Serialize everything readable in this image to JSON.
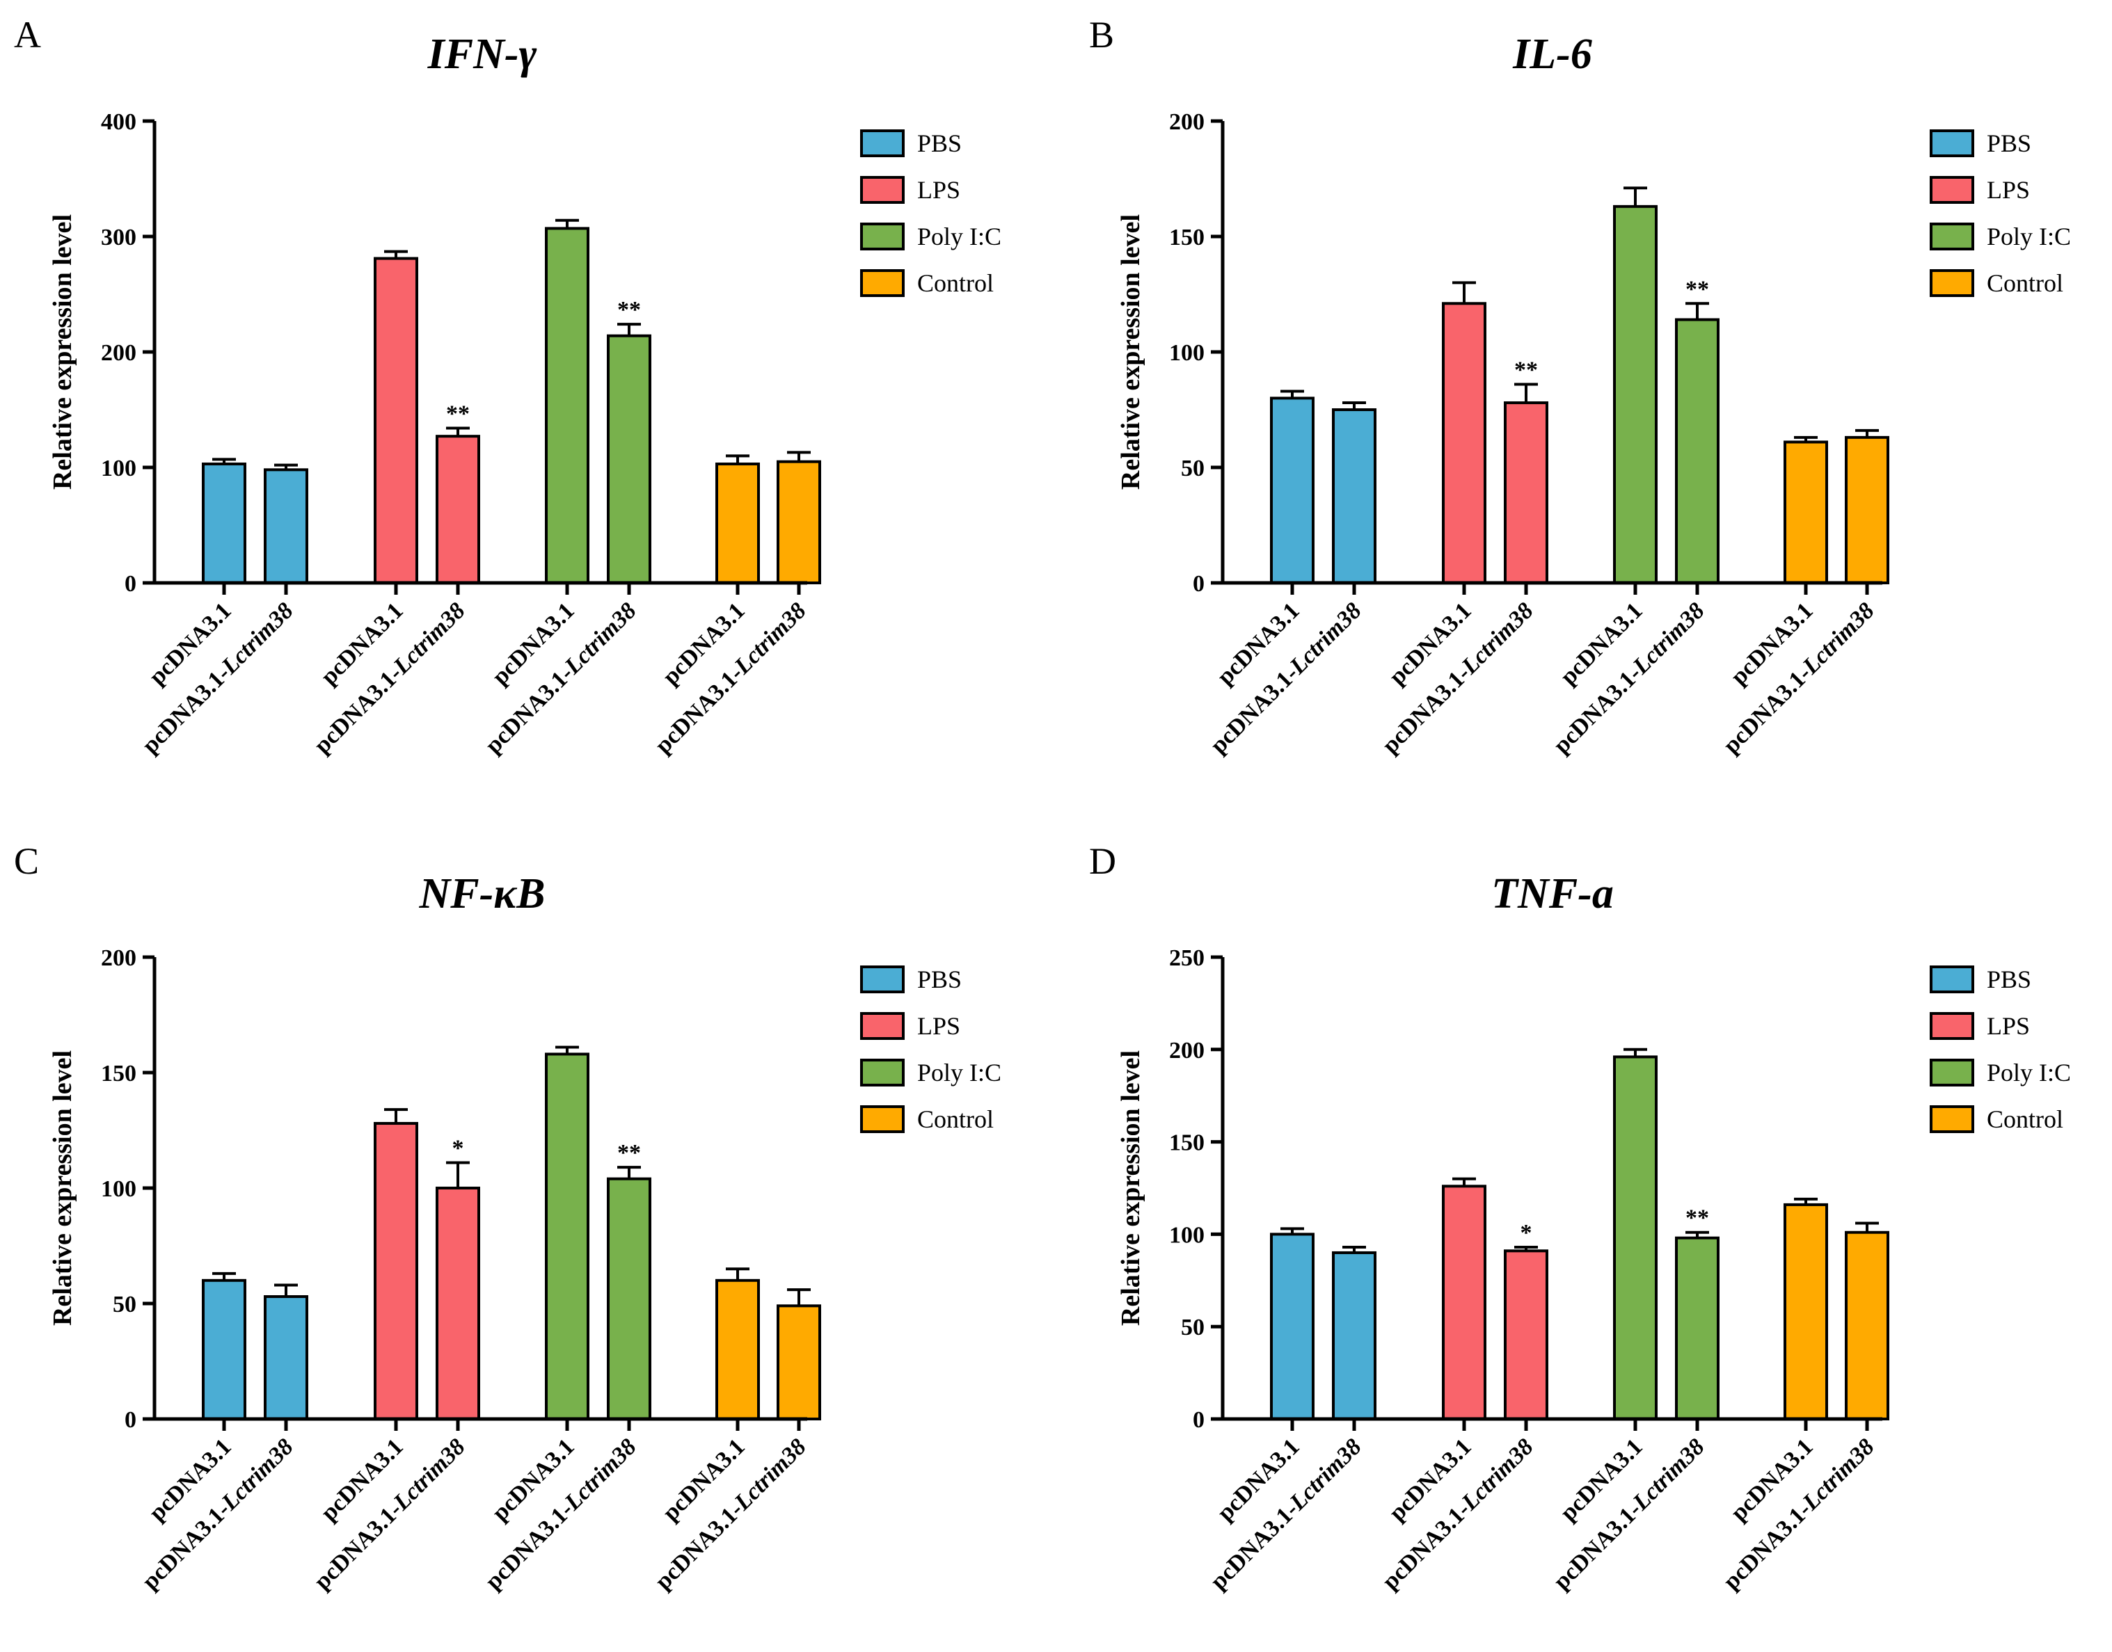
{
  "colors": {
    "PBS": "#4badd4",
    "LPS": "#f9646b",
    "Poly I:C": "#78b14c",
    "Control": "#ffaa00"
  },
  "chart_data": [
    {
      "panel": "A",
      "type": "bar",
      "title": "IFN-γ",
      "ylabel": "Relative expression level",
      "xlabel": "",
      "ylim": [
        0,
        400
      ],
      "yticks": [
        0,
        100,
        200,
        300,
        400
      ],
      "groups": [
        "PBS",
        "LPS",
        "Poly I:C",
        "Control"
      ],
      "categories": [
        "pcDNA3.1",
        "pcDNA3.1-Lctrim38"
      ],
      "legend": [
        "PBS",
        "LPS",
        "Poly I:C",
        "Control"
      ],
      "legend_position": "right",
      "series": [
        {
          "name": "PBS",
          "values": [
            103,
            98
          ],
          "errors": [
            4,
            4
          ],
          "sig": [
            "",
            ""
          ]
        },
        {
          "name": "LPS",
          "values": [
            281,
            127
          ],
          "errors": [
            6,
            7
          ],
          "sig": [
            "",
            "**"
          ]
        },
        {
          "name": "Poly I:C",
          "values": [
            307,
            214
          ],
          "errors": [
            7,
            10
          ],
          "sig": [
            "",
            "**"
          ]
        },
        {
          "name": "Control",
          "values": [
            103,
            105
          ],
          "errors": [
            7,
            8
          ],
          "sig": [
            "",
            ""
          ]
        }
      ]
    },
    {
      "panel": "B",
      "type": "bar",
      "title": "IL-6",
      "ylabel": "Relative expression level",
      "xlabel": "",
      "ylim": [
        0,
        200
      ],
      "yticks": [
        0,
        50,
        100,
        150,
        200
      ],
      "groups": [
        "PBS",
        "LPS",
        "Poly I:C",
        "Control"
      ],
      "categories": [
        "pcDNA3.1",
        "pcDNA3.1-Lctrim38"
      ],
      "legend": [
        "PBS",
        "LPS",
        "Poly I:C",
        "Control"
      ],
      "legend_position": "right",
      "series": [
        {
          "name": "PBS",
          "values": [
            80,
            75
          ],
          "errors": [
            3,
            3
          ],
          "sig": [
            "",
            ""
          ]
        },
        {
          "name": "LPS",
          "values": [
            121,
            78
          ],
          "errors": [
            9,
            8
          ],
          "sig": [
            "",
            "**"
          ]
        },
        {
          "name": "Poly I:C",
          "values": [
            163,
            114
          ],
          "errors": [
            8,
            7
          ],
          "sig": [
            "",
            "**"
          ]
        },
        {
          "name": "Control",
          "values": [
            61,
            63
          ],
          "errors": [
            2,
            3
          ],
          "sig": [
            "",
            ""
          ]
        }
      ]
    },
    {
      "panel": "C",
      "type": "bar",
      "title": "NF-κB",
      "ylabel": "Relative expression level",
      "xlabel": "",
      "ylim": [
        0,
        200
      ],
      "yticks": [
        0,
        50,
        100,
        150,
        200
      ],
      "groups": [
        "PBS",
        "LPS",
        "Poly I:C",
        "Control"
      ],
      "categories": [
        "pcDNA3.1",
        "pcDNA3.1-Lctrim38"
      ],
      "legend": [
        "PBS",
        "LPS",
        "Poly I:C",
        "Control"
      ],
      "legend_position": "right",
      "series": [
        {
          "name": "PBS",
          "values": [
            60,
            53
          ],
          "errors": [
            3,
            5
          ],
          "sig": [
            "",
            ""
          ]
        },
        {
          "name": "LPS",
          "values": [
            128,
            100
          ],
          "errors": [
            6,
            11
          ],
          "sig": [
            "",
            "*"
          ]
        },
        {
          "name": "Poly I:C",
          "values": [
            158,
            104
          ],
          "errors": [
            3,
            5
          ],
          "sig": [
            "",
            "**"
          ]
        },
        {
          "name": "Control",
          "values": [
            60,
            49
          ],
          "errors": [
            5,
            7
          ],
          "sig": [
            "",
            ""
          ]
        }
      ]
    },
    {
      "panel": "D",
      "type": "bar",
      "title": "TNF-a",
      "ylabel": "Relative expression level",
      "xlabel": "",
      "ylim": [
        0,
        250
      ],
      "yticks": [
        0,
        50,
        100,
        150,
        200,
        250
      ],
      "groups": [
        "PBS",
        "LPS",
        "Poly I:C",
        "Control"
      ],
      "categories": [
        "pcDNA3.1",
        "pcDNA3.1-Lctrim38"
      ],
      "legend": [
        "PBS",
        "LPS",
        "Poly I:C",
        "Control"
      ],
      "legend_position": "right",
      "series": [
        {
          "name": "PBS",
          "values": [
            100,
            90
          ],
          "errors": [
            3,
            3
          ],
          "sig": [
            "",
            ""
          ]
        },
        {
          "name": "LPS",
          "values": [
            126,
            91
          ],
          "errors": [
            4,
            2
          ],
          "sig": [
            "",
            "*"
          ]
        },
        {
          "name": "Poly I:C",
          "values": [
            196,
            98
          ],
          "errors": [
            4,
            3
          ],
          "sig": [
            "",
            "**"
          ]
        },
        {
          "name": "Control",
          "values": [
            116,
            101
          ],
          "errors": [
            3,
            5
          ],
          "sig": [
            "",
            ""
          ]
        }
      ]
    }
  ]
}
